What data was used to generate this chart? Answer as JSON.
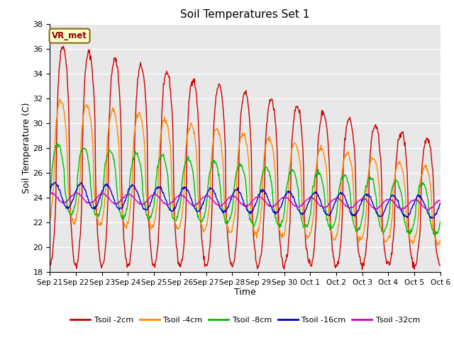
{
  "title": "Soil Temperatures Set 1",
  "xlabel": "Time",
  "ylabel": "Soil Temperature (C)",
  "ylim": [
    18,
    38
  ],
  "yticks": [
    18,
    20,
    22,
    24,
    26,
    28,
    30,
    32,
    34,
    36,
    38
  ],
  "annotation": "VR_met",
  "bg_color": "#e8e8e8",
  "grid_color": "#ffffff",
  "colors": {
    "Tsoil -2cm": "#cc0000",
    "Tsoil -4cm": "#ff8800",
    "Tsoil -8cm": "#00bb00",
    "Tsoil -16cm": "#0000cc",
    "Tsoil -32cm": "#cc00cc"
  },
  "x_tick_labels": [
    "Sep 21",
    "Sep 22",
    "Sep 23",
    "Sep 24",
    "Sep 25",
    "Sep 26",
    "Sep 27",
    "Sep 28",
    "Sep 29",
    "Sep 30",
    "Oct 1",
    "Oct 2",
    "Oct 3",
    "Oct 4",
    "Oct 5",
    "Oct 6"
  ],
  "n_days": 15,
  "pts_per_day": 48,
  "seed": 42
}
